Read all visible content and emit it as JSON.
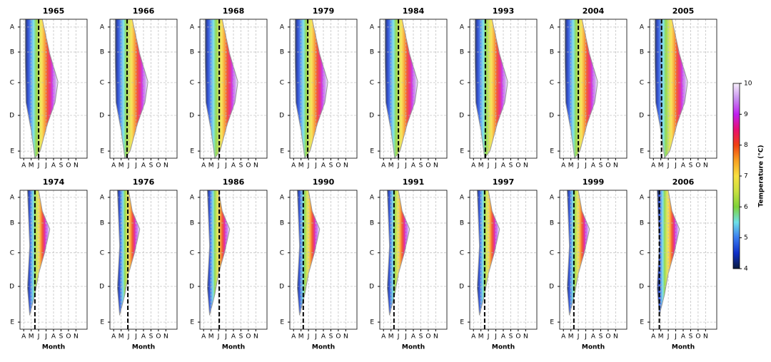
{
  "chart_data": [
    {
      "type": "contour",
      "title": "1965",
      "xlim": [
        3.5,
        12.5
      ],
      "xticks": [
        {
          "value": 4,
          "label": "A"
        },
        {
          "value": 5,
          "label": "M"
        },
        {
          "value": 6,
          "label": "J"
        },
        {
          "value": 7,
          "label": "J"
        },
        {
          "value": 8,
          "label": "A"
        },
        {
          "value": 9,
          "label": "S"
        },
        {
          "value": 10,
          "label": "O"
        },
        {
          "value": 11,
          "label": "N"
        }
      ],
      "ylim": [
        0,
        100
      ],
      "y_inverted": true,
      "yticks": [
        {
          "value": 5.6,
          "label": "A"
        },
        {
          "value": 23.6,
          "label": "B"
        },
        {
          "value": 45.6,
          "label": "C"
        },
        {
          "value": 69.2,
          "label": "D"
        },
        {
          "value": 94.9,
          "label": "E"
        }
      ],
      "grid": true,
      "marker_month": 6.0
    },
    {
      "type": "contour",
      "title": "1966",
      "xlim": [
        3.5,
        12.5
      ],
      "xticks": [
        {
          "value": 4,
          "label": "A"
        },
        {
          "value": 5,
          "label": "M"
        },
        {
          "value": 6,
          "label": "J"
        },
        {
          "value": 7,
          "label": "J"
        },
        {
          "value": 8,
          "label": "A"
        },
        {
          "value": 9,
          "label": "S"
        },
        {
          "value": 10,
          "label": "O"
        },
        {
          "value": 11,
          "label": "N"
        }
      ],
      "ylim": [
        0,
        100
      ],
      "y_inverted": true,
      "yticks": [
        {
          "value": 5.6,
          "label": "A"
        },
        {
          "value": 23.6,
          "label": "B"
        },
        {
          "value": 45.6,
          "label": "C"
        },
        {
          "value": 69.2,
          "label": "D"
        },
        {
          "value": 94.9,
          "label": "E"
        }
      ],
      "grid": true,
      "marker_month": 5.8
    },
    {
      "type": "contour",
      "title": "1968",
      "xlim": [
        3.5,
        12.5
      ],
      "xticks": [
        {
          "value": 4,
          "label": "A"
        },
        {
          "value": 5,
          "label": "M"
        },
        {
          "value": 6,
          "label": "J"
        },
        {
          "value": 7,
          "label": "J"
        },
        {
          "value": 8,
          "label": "A"
        },
        {
          "value": 9,
          "label": "S"
        },
        {
          "value": 10,
          "label": "O"
        },
        {
          "value": 11,
          "label": "N"
        }
      ],
      "ylim": [
        0,
        100
      ],
      "y_inverted": true,
      "yticks": [
        {
          "value": 5.6,
          "label": "A"
        },
        {
          "value": 23.6,
          "label": "B"
        },
        {
          "value": 45.6,
          "label": "C"
        },
        {
          "value": 69.2,
          "label": "D"
        },
        {
          "value": 94.9,
          "label": "E"
        }
      ],
      "grid": true,
      "marker_month": 6.1
    },
    {
      "type": "contour",
      "title": "1979",
      "xlim": [
        3.5,
        12.5
      ],
      "xticks": [
        {
          "value": 4,
          "label": "A"
        },
        {
          "value": 5,
          "label": "M"
        },
        {
          "value": 6,
          "label": "J"
        },
        {
          "value": 7,
          "label": "J"
        },
        {
          "value": 8,
          "label": "A"
        },
        {
          "value": 9,
          "label": "S"
        },
        {
          "value": 10,
          "label": "O"
        },
        {
          "value": 11,
          "label": "N"
        }
      ],
      "ylim": [
        0,
        100
      ],
      "y_inverted": true,
      "yticks": [
        {
          "value": 5.6,
          "label": "A"
        },
        {
          "value": 23.6,
          "label": "B"
        },
        {
          "value": 45.6,
          "label": "C"
        },
        {
          "value": 69.2,
          "label": "D"
        },
        {
          "value": 94.9,
          "label": "E"
        }
      ],
      "grid": true,
      "marker_month": 5.9
    },
    {
      "type": "contour",
      "title": "1984",
      "xlim": [
        3.5,
        12.5
      ],
      "xticks": [
        {
          "value": 4,
          "label": "A"
        },
        {
          "value": 5,
          "label": "M"
        },
        {
          "value": 6,
          "label": "J"
        },
        {
          "value": 7,
          "label": "J"
        },
        {
          "value": 8,
          "label": "A"
        },
        {
          "value": 9,
          "label": "S"
        },
        {
          "value": 10,
          "label": "O"
        },
        {
          "value": 11,
          "label": "N"
        }
      ],
      "ylim": [
        0,
        100
      ],
      "y_inverted": true,
      "yticks": [
        {
          "value": 5.6,
          "label": "A"
        },
        {
          "value": 23.6,
          "label": "B"
        },
        {
          "value": 45.6,
          "label": "C"
        },
        {
          "value": 69.2,
          "label": "D"
        },
        {
          "value": 94.9,
          "label": "E"
        }
      ],
      "grid": true,
      "marker_month": 6.0
    },
    {
      "type": "contour",
      "title": "1993",
      "xlim": [
        3.5,
        12.5
      ],
      "xticks": [
        {
          "value": 4,
          "label": "A"
        },
        {
          "value": 5,
          "label": "M"
        },
        {
          "value": 6,
          "label": "J"
        },
        {
          "value": 7,
          "label": "J"
        },
        {
          "value": 8,
          "label": "A"
        },
        {
          "value": 9,
          "label": "S"
        },
        {
          "value": 10,
          "label": "O"
        },
        {
          "value": 11,
          "label": "N"
        }
      ],
      "ylim": [
        0,
        100
      ],
      "y_inverted": true,
      "yticks": [
        {
          "value": 5.6,
          "label": "A"
        },
        {
          "value": 23.6,
          "label": "B"
        },
        {
          "value": 45.6,
          "label": "C"
        },
        {
          "value": 69.2,
          "label": "D"
        },
        {
          "value": 94.9,
          "label": "E"
        }
      ],
      "grid": true,
      "marker_month": 5.6
    },
    {
      "type": "contour",
      "title": "2004",
      "xlim": [
        3.5,
        12.5
      ],
      "xticks": [
        {
          "value": 4,
          "label": "A"
        },
        {
          "value": 5,
          "label": "M"
        },
        {
          "value": 6,
          "label": "J"
        },
        {
          "value": 7,
          "label": "J"
        },
        {
          "value": 8,
          "label": "A"
        },
        {
          "value": 9,
          "label": "S"
        },
        {
          "value": 10,
          "label": "O"
        },
        {
          "value": 11,
          "label": "N"
        }
      ],
      "ylim": [
        0,
        100
      ],
      "y_inverted": true,
      "yticks": [
        {
          "value": 5.6,
          "label": "A"
        },
        {
          "value": 23.6,
          "label": "B"
        },
        {
          "value": 45.6,
          "label": "C"
        },
        {
          "value": 69.2,
          "label": "D"
        },
        {
          "value": 94.9,
          "label": "E"
        }
      ],
      "grid": true,
      "marker_month": 6.0
    },
    {
      "type": "contour",
      "title": "2005",
      "xlim": [
        3.5,
        12.5
      ],
      "xticks": [
        {
          "value": 4,
          "label": "A"
        },
        {
          "value": 5,
          "label": "M"
        },
        {
          "value": 6,
          "label": "J"
        },
        {
          "value": 7,
          "label": "J"
        },
        {
          "value": 8,
          "label": "A"
        },
        {
          "value": 9,
          "label": "S"
        },
        {
          "value": 10,
          "label": "O"
        },
        {
          "value": 11,
          "label": "N"
        }
      ],
      "ylim": [
        0,
        100
      ],
      "y_inverted": true,
      "yticks": [
        {
          "value": 5.6,
          "label": "A"
        },
        {
          "value": 23.6,
          "label": "B"
        },
        {
          "value": 45.6,
          "label": "C"
        },
        {
          "value": 69.2,
          "label": "D"
        },
        {
          "value": 94.9,
          "label": "E"
        }
      ],
      "grid": true,
      "marker_month": 5.1
    },
    {
      "type": "contour",
      "title": "1974",
      "x_label": "Month",
      "xlim": [
        3.5,
        12.5
      ],
      "xticks": [
        {
          "value": 4,
          "label": "A"
        },
        {
          "value": 5,
          "label": "M"
        },
        {
          "value": 6,
          "label": "J"
        },
        {
          "value": 7,
          "label": "J"
        },
        {
          "value": 8,
          "label": "A"
        },
        {
          "value": 9,
          "label": "S"
        },
        {
          "value": 10,
          "label": "O"
        },
        {
          "value": 11,
          "label": "N"
        }
      ],
      "ylim": [
        0,
        100
      ],
      "y_inverted": true,
      "yticks": [
        {
          "value": 5.1,
          "label": "A"
        },
        {
          "value": 23.6,
          "label": "B"
        },
        {
          "value": 45,
          "label": "C"
        },
        {
          "value": 69.2,
          "label": "D"
        },
        {
          "value": 94.9,
          "label": "E"
        }
      ],
      "grid": true,
      "marker_month": 5.5
    },
    {
      "type": "contour",
      "title": "1976",
      "x_label": "Month",
      "xlim": [
        3.5,
        12.5
      ],
      "xticks": [
        {
          "value": 4,
          "label": "A"
        },
        {
          "value": 5,
          "label": "M"
        },
        {
          "value": 6,
          "label": "J"
        },
        {
          "value": 7,
          "label": "J"
        },
        {
          "value": 8,
          "label": "A"
        },
        {
          "value": 9,
          "label": "S"
        },
        {
          "value": 10,
          "label": "O"
        },
        {
          "value": 11,
          "label": "N"
        }
      ],
      "ylim": [
        0,
        100
      ],
      "y_inverted": true,
      "yticks": [
        {
          "value": 5.1,
          "label": "A"
        },
        {
          "value": 23.6,
          "label": "B"
        },
        {
          "value": 45,
          "label": "C"
        },
        {
          "value": 69.2,
          "label": "D"
        },
        {
          "value": 94.9,
          "label": "E"
        }
      ],
      "grid": true,
      "marker_month": 5.9
    },
    {
      "type": "contour",
      "title": "1986",
      "x_label": "Month",
      "xlim": [
        3.5,
        12.5
      ],
      "xticks": [
        {
          "value": 4,
          "label": "A"
        },
        {
          "value": 5,
          "label": "M"
        },
        {
          "value": 6,
          "label": "J"
        },
        {
          "value": 7,
          "label": "J"
        },
        {
          "value": 8,
          "label": "A"
        },
        {
          "value": 9,
          "label": "S"
        },
        {
          "value": 10,
          "label": "O"
        },
        {
          "value": 11,
          "label": "N"
        }
      ],
      "ylim": [
        0,
        100
      ],
      "y_inverted": true,
      "yticks": [
        {
          "value": 5.1,
          "label": "A"
        },
        {
          "value": 23.6,
          "label": "B"
        },
        {
          "value": 45,
          "label": "C"
        },
        {
          "value": 69.2,
          "label": "D"
        },
        {
          "value": 94.9,
          "label": "E"
        }
      ],
      "grid": true,
      "marker_month": 6.1
    },
    {
      "type": "contour",
      "title": "1990",
      "x_label": "Month",
      "xlim": [
        3.5,
        12.5
      ],
      "xticks": [
        {
          "value": 4,
          "label": "A"
        },
        {
          "value": 5,
          "label": "M"
        },
        {
          "value": 6,
          "label": "J"
        },
        {
          "value": 7,
          "label": "J"
        },
        {
          "value": 8,
          "label": "A"
        },
        {
          "value": 9,
          "label": "S"
        },
        {
          "value": 10,
          "label": "O"
        },
        {
          "value": 11,
          "label": "N"
        }
      ],
      "ylim": [
        0,
        100
      ],
      "y_inverted": true,
      "yticks": [
        {
          "value": 5.1,
          "label": "A"
        },
        {
          "value": 23.6,
          "label": "B"
        },
        {
          "value": 45,
          "label": "C"
        },
        {
          "value": 69.2,
          "label": "D"
        },
        {
          "value": 94.9,
          "label": "E"
        }
      ],
      "grid": true,
      "marker_month": 5.3
    },
    {
      "type": "contour",
      "title": "1991",
      "x_label": "Month",
      "xlim": [
        3.5,
        12.5
      ],
      "xticks": [
        {
          "value": 4,
          "label": "A"
        },
        {
          "value": 5,
          "label": "M"
        },
        {
          "value": 6,
          "label": "J"
        },
        {
          "value": 7,
          "label": "J"
        },
        {
          "value": 8,
          "label": "A"
        },
        {
          "value": 9,
          "label": "S"
        },
        {
          "value": 10,
          "label": "O"
        },
        {
          "value": 11,
          "label": "N"
        }
      ],
      "ylim": [
        0,
        100
      ],
      "y_inverted": true,
      "yticks": [
        {
          "value": 5.1,
          "label": "A"
        },
        {
          "value": 23.6,
          "label": "B"
        },
        {
          "value": 45,
          "label": "C"
        },
        {
          "value": 69.2,
          "label": "D"
        },
        {
          "value": 94.9,
          "label": "E"
        }
      ],
      "grid": true,
      "marker_month": 5.4
    },
    {
      "type": "contour",
      "title": "1997",
      "x_label": "Month",
      "xlim": [
        3.5,
        12.5
      ],
      "xticks": [
        {
          "value": 4,
          "label": "A"
        },
        {
          "value": 5,
          "label": "M"
        },
        {
          "value": 6,
          "label": "J"
        },
        {
          "value": 7,
          "label": "J"
        },
        {
          "value": 8,
          "label": "A"
        },
        {
          "value": 9,
          "label": "S"
        },
        {
          "value": 10,
          "label": "O"
        },
        {
          "value": 11,
          "label": "N"
        }
      ],
      "ylim": [
        0,
        100
      ],
      "y_inverted": true,
      "yticks": [
        {
          "value": 5.1,
          "label": "A"
        },
        {
          "value": 23.6,
          "label": "B"
        },
        {
          "value": 45,
          "label": "C"
        },
        {
          "value": 69.2,
          "label": "D"
        },
        {
          "value": 94.9,
          "label": "E"
        }
      ],
      "grid": true,
      "marker_month": 5.5
    },
    {
      "type": "contour",
      "title": "1999",
      "x_label": "Month",
      "xlim": [
        3.5,
        12.5
      ],
      "xticks": [
        {
          "value": 4,
          "label": "A"
        },
        {
          "value": 5,
          "label": "M"
        },
        {
          "value": 6,
          "label": "J"
        },
        {
          "value": 7,
          "label": "J"
        },
        {
          "value": 8,
          "label": "A"
        },
        {
          "value": 9,
          "label": "S"
        },
        {
          "value": 10,
          "label": "O"
        },
        {
          "value": 11,
          "label": "N"
        }
      ],
      "ylim": [
        0,
        100
      ],
      "y_inverted": true,
      "yticks": [
        {
          "value": 5.1,
          "label": "A"
        },
        {
          "value": 23.6,
          "label": "B"
        },
        {
          "value": 45,
          "label": "C"
        },
        {
          "value": 69.2,
          "label": "D"
        },
        {
          "value": 94.9,
          "label": "E"
        }
      ],
      "grid": true,
      "marker_month": 5.4
    },
    {
      "type": "contour",
      "title": "2006",
      "x_label": "Month",
      "xlim": [
        3.5,
        12.5
      ],
      "xticks": [
        {
          "value": 4,
          "label": "A"
        },
        {
          "value": 5,
          "label": "M"
        },
        {
          "value": 6,
          "label": "J"
        },
        {
          "value": 7,
          "label": "J"
        },
        {
          "value": 8,
          "label": "A"
        },
        {
          "value": 9,
          "label": "S"
        },
        {
          "value": 10,
          "label": "O"
        },
        {
          "value": 11,
          "label": "N"
        }
      ],
      "ylim": [
        0,
        100
      ],
      "y_inverted": true,
      "yticks": [
        {
          "value": 5.1,
          "label": "A"
        },
        {
          "value": 23.6,
          "label": "B"
        },
        {
          "value": 45,
          "label": "C"
        },
        {
          "value": 69.2,
          "label": "D"
        },
        {
          "value": 94.9,
          "label": "E"
        }
      ],
      "grid": true,
      "marker_month": 4.8
    }
  ],
  "colorbar": {
    "label": "Temperature (°C)",
    "lim": [
      4,
      10
    ],
    "ticks": [
      4,
      5,
      6,
      7,
      8,
      9,
      10
    ],
    "color_stops": [
      {
        "value": 4,
        "color": "#0b1b3f"
      },
      {
        "value": 4.5,
        "color": "#1030c8"
      },
      {
        "value": 5,
        "color": "#3a7cf0"
      },
      {
        "value": 5.5,
        "color": "#6ee0e8"
      },
      {
        "value": 6,
        "color": "#7ed23a"
      },
      {
        "value": 6.5,
        "color": "#c8e040"
      },
      {
        "value": 7,
        "color": "#f8e040"
      },
      {
        "value": 7.5,
        "color": "#f8a020"
      },
      {
        "value": 8,
        "color": "#f04010"
      },
      {
        "value": 8.5,
        "color": "#e81070"
      },
      {
        "value": 9,
        "color": "#c020f0"
      },
      {
        "value": 9.5,
        "color": "#c890f0"
      },
      {
        "value": 10,
        "color": "#f8f0fc"
      }
    ]
  }
}
